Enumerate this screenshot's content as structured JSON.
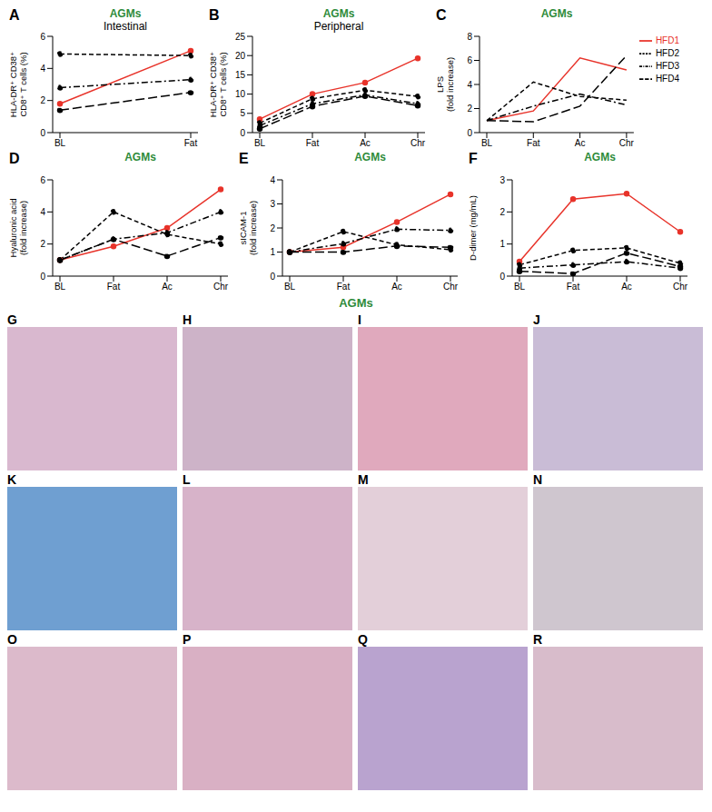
{
  "chart_data": [
    {
      "type": "line",
      "annotation": "A",
      "title": "AGMs",
      "subtitle": "Intestinal",
      "ylabel": [
        "HLA-DR⁺ CD38⁺",
        "CD8⁺ T cells (%)"
      ],
      "categories": [
        "BL",
        "Fat"
      ],
      "ylim": [
        0,
        6
      ],
      "yticks": [
        0,
        2,
        4,
        6
      ],
      "marker": "circle",
      "series": [
        {
          "name": "HFD1",
          "color": "#e8332a",
          "line_style": "solid",
          "values": [
            1.8,
            5.1
          ]
        },
        {
          "name": "HFD2",
          "color": "#000000",
          "line_style": "dashed",
          "values": [
            4.9,
            4.8
          ]
        },
        {
          "name": "HFD3",
          "color": "#000000",
          "line_style": "dashdot",
          "values": [
            2.8,
            3.3
          ]
        },
        {
          "name": "HFD4",
          "color": "#000000",
          "line_style": "longdash",
          "values": [
            1.4,
            2.5
          ]
        }
      ]
    },
    {
      "type": "line",
      "annotation": "B",
      "title": "AGMs",
      "subtitle": "Peripheral",
      "ylabel": [
        "HLA-DR⁺ CD38⁺",
        "CD8⁺ T cells (%)"
      ],
      "categories": [
        "BL",
        "Fat",
        "Ac",
        "Chr"
      ],
      "ylim": [
        0,
        25
      ],
      "yticks": [
        0,
        5,
        10,
        15,
        20,
        25
      ],
      "marker": "circle",
      "series": [
        {
          "name": "HFD1",
          "color": "#e8332a",
          "line_style": "solid",
          "values": [
            3.5,
            10,
            13,
            19.3
          ]
        },
        {
          "name": "HFD2",
          "color": "#000000",
          "line_style": "dashed",
          "values": [
            2.5,
            8.8,
            11,
            9.4
          ]
        },
        {
          "name": "HFD3",
          "color": "#000000",
          "line_style": "dashdot",
          "values": [
            1.8,
            7.5,
            9.8,
            7.5
          ]
        },
        {
          "name": "HFD4",
          "color": "#000000",
          "line_style": "longdash",
          "values": [
            1.0,
            6.8,
            9.5,
            7.0
          ]
        }
      ]
    },
    {
      "type": "line",
      "annotation": "C",
      "title": "AGMs",
      "ylabel": [
        "LPS",
        "(fold increase)"
      ],
      "categories": [
        "BL",
        "Fat",
        "Ac",
        "Chr"
      ],
      "ylim": [
        0,
        8
      ],
      "yticks": [
        0,
        2,
        4,
        6,
        8
      ],
      "marker": "none",
      "legend": "upper right",
      "series": [
        {
          "name": "HFD1",
          "color": "#e8332a",
          "line_style": "solid",
          "values": [
            1,
            1.8,
            6.2,
            5.2
          ]
        },
        {
          "name": "HFD2",
          "color": "#000000",
          "line_style": "dashed",
          "values": [
            1,
            4.2,
            3.0,
            2.7
          ]
        },
        {
          "name": "HFD3",
          "color": "#000000",
          "line_style": "dashdot",
          "values": [
            1,
            2.2,
            3.2,
            2.3
          ]
        },
        {
          "name": "HFD4",
          "color": "#000000",
          "line_style": "longdash",
          "values": [
            1,
            0.9,
            2.2,
            6.4
          ]
        }
      ]
    },
    {
      "type": "line",
      "annotation": "D",
      "title": "AGMs",
      "ylabel": [
        "Hyaluronic acid",
        "(fold increase)"
      ],
      "categories": [
        "BL",
        "Fat",
        "Ac",
        "Chr"
      ],
      "ylim": [
        0,
        6
      ],
      "yticks": [
        0,
        2,
        4,
        6
      ],
      "marker": "circle",
      "series": [
        {
          "name": "HFD1",
          "color": "#e8332a",
          "line_style": "solid",
          "values": [
            1,
            1.85,
            3.0,
            5.4
          ]
        },
        {
          "name": "HFD2",
          "color": "#000000",
          "line_style": "dashed",
          "values": [
            1,
            4.0,
            2.6,
            2.0
          ]
        },
        {
          "name": "HFD3",
          "color": "#000000",
          "line_style": "dashdot",
          "values": [
            1,
            2.3,
            2.7,
            4.0
          ]
        },
        {
          "name": "HFD4",
          "color": "#000000",
          "line_style": "longdash",
          "values": [
            1,
            2.3,
            1.25,
            2.4
          ]
        }
      ]
    },
    {
      "type": "line",
      "annotation": "E",
      "title": "AGMs",
      "ylabel": [
        "sICAM-1",
        "(fold increase)"
      ],
      "categories": [
        "BL",
        "Fat",
        "Ac",
        "Chr"
      ],
      "ylim": [
        0,
        4
      ],
      "yticks": [
        0,
        1,
        2,
        3,
        4
      ],
      "marker": "circle",
      "series": [
        {
          "name": "HFD1",
          "color": "#e8332a",
          "line_style": "solid",
          "values": [
            1,
            1.2,
            2.25,
            3.4
          ]
        },
        {
          "name": "HFD2",
          "color": "#000000",
          "line_style": "dashed",
          "values": [
            1,
            1.85,
            1.3,
            1.1
          ]
        },
        {
          "name": "HFD3",
          "color": "#000000",
          "line_style": "dashdot",
          "values": [
            1,
            1.35,
            1.95,
            1.9
          ]
        },
        {
          "name": "HFD4",
          "color": "#000000",
          "line_style": "longdash",
          "values": [
            1,
            1.0,
            1.25,
            1.2
          ]
        }
      ]
    },
    {
      "type": "line",
      "annotation": "F",
      "title": "AGMs",
      "ylabel": [
        "D-dimer (mg/mL)"
      ],
      "categories": [
        "BL",
        "Fat",
        "Ac",
        "Chr"
      ],
      "ylim": [
        0,
        3
      ],
      "yticks": [
        0,
        1,
        2,
        3
      ],
      "marker": "circle",
      "series": [
        {
          "name": "HFD1",
          "color": "#e8332a",
          "line_style": "solid",
          "values": [
            0.45,
            2.4,
            2.57,
            1.38
          ]
        },
        {
          "name": "HFD2",
          "color": "#000000",
          "line_style": "dashed",
          "values": [
            0.35,
            0.8,
            0.88,
            0.4
          ]
        },
        {
          "name": "HFD3",
          "color": "#000000",
          "line_style": "dashdot",
          "values": [
            0.25,
            0.35,
            0.45,
            0.25
          ]
        },
        {
          "name": "HFD4",
          "color": "#000000",
          "line_style": "longdash",
          "values": [
            0.15,
            0.08,
            0.72,
            0.3
          ]
        }
      ]
    }
  ],
  "image_panels": {
    "title": "AGMs",
    "panels": [
      "G",
      "H",
      "I",
      "J",
      "K",
      "L",
      "M",
      "N",
      "O",
      "P",
      "Q",
      "R"
    ]
  }
}
